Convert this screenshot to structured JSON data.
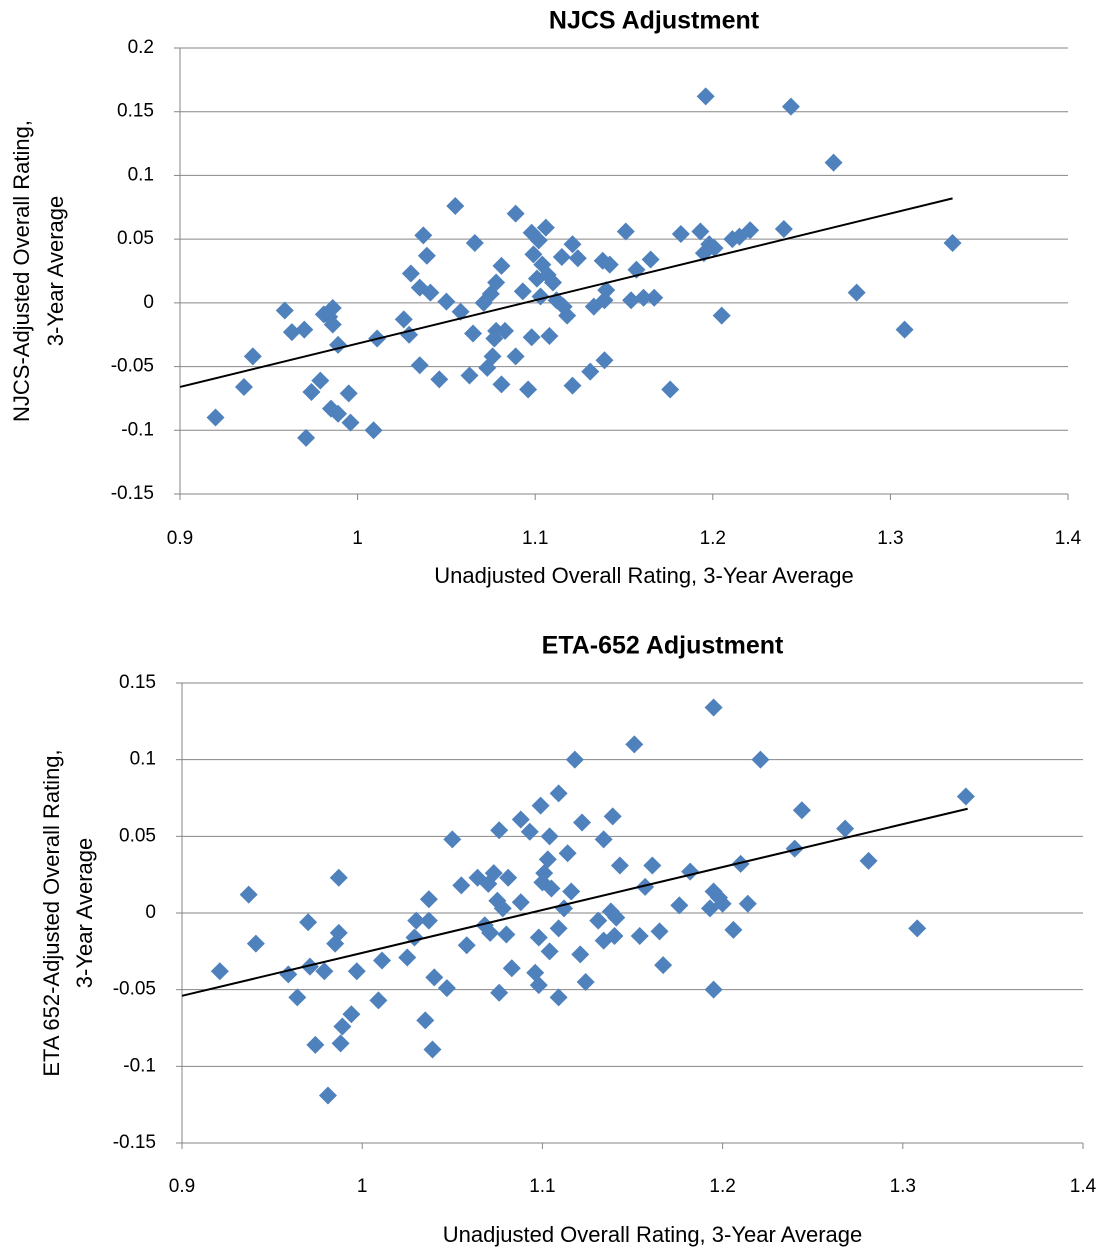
{
  "chart_data": [
    {
      "type": "scatter",
      "title": "NJCS Adjustment",
      "x_label": "Unadjusted Overall Rating, 3-Year Average",
      "y_label": [
        "NJCS-Adjusted Overall Rating,",
        "3-Year Average"
      ],
      "xlim": [
        0.9,
        1.4
      ],
      "xticks": [
        0.9,
        1,
        1.1,
        1.2,
        1.3,
        1.4
      ],
      "ylim": [
        -0.15,
        0.2
      ],
      "yticks": [
        -0.15,
        -0.1,
        -0.05,
        0,
        0.05,
        0.1,
        0.15,
        0.2
      ],
      "grid": true,
      "series": [
        {
          "color": "#4f81bd",
          "x": [
            0.92,
            0.936,
            0.941,
            0.959,
            0.963,
            0.97,
            0.971,
            0.974,
            0.979,
            0.981,
            0.984,
            0.986,
            0.986,
            0.985,
            0.989,
            0.989,
            0.995,
            0.996,
            1.009,
            1.011,
            1.026,
            1.029,
            1.03,
            1.035,
            1.035,
            1.037,
            1.039,
            1.041,
            1.046,
            1.05,
            1.055,
            1.058,
            1.063,
            1.065,
            1.066,
            1.071,
            1.073,
            1.075,
            1.076,
            1.077,
            1.078,
            1.078,
            1.081,
            1.081,
            1.083,
            1.089,
            1.089,
            1.093,
            1.096,
            1.098,
            1.098,
            1.099,
            1.101,
            1.102,
            1.103,
            1.104,
            1.106,
            1.107,
            1.108,
            1.11,
            1.112,
            1.115,
            1.116,
            1.118,
            1.121,
            1.121,
            1.124,
            1.131,
            1.133,
            1.138,
            1.139,
            1.139,
            1.14,
            1.142,
            1.151,
            1.154,
            1.157,
            1.161,
            1.165,
            1.167,
            1.176,
            1.182,
            1.193,
            1.195,
            1.196,
            1.198,
            1.201,
            1.205,
            1.211,
            1.215,
            1.221,
            1.24,
            1.244,
            1.268,
            1.281,
            1.308,
            1.335
          ],
          "y": [
            -0.09,
            -0.066,
            -0.042,
            -0.006,
            -0.023,
            -0.021,
            -0.106,
            -0.07,
            -0.061,
            -0.009,
            -0.011,
            -0.004,
            -0.017,
            -0.083,
            -0.087,
            -0.033,
            -0.071,
            -0.094,
            -0.1,
            -0.028,
            -0.013,
            -0.025,
            0.023,
            -0.049,
            0.012,
            0.053,
            0.037,
            0.008,
            -0.06,
            0.001,
            0.076,
            -0.007,
            -0.057,
            -0.024,
            0.047,
            0.0,
            -0.051,
            0.007,
            -0.042,
            -0.028,
            -0.022,
            0.016,
            -0.064,
            0.029,
            -0.022,
            -0.042,
            0.07,
            0.009,
            -0.068,
            -0.027,
            0.055,
            0.038,
            0.019,
            0.049,
            0.005,
            0.03,
            0.059,
            0.022,
            -0.026,
            0.016,
            0.002,
            0.036,
            -0.003,
            -0.01,
            0.046,
            -0.065,
            0.035,
            -0.054,
            -0.003,
            0.033,
            0.002,
            -0.045,
            0.01,
            0.03,
            0.056,
            0.002,
            0.026,
            0.004,
            0.034,
            0.004,
            -0.068,
            0.054,
            0.056,
            0.039,
            0.162,
            0.046,
            0.043,
            -0.01,
            0.05,
            0.052,
            0.057,
            0.058,
            0.154,
            0.11,
            0.008,
            -0.021,
            0.047
          ]
        }
      ],
      "trendline": {
        "color": "#000000",
        "x": [
          0.9,
          1.335
        ],
        "y": [
          -0.066,
          0.082
        ]
      }
    },
    {
      "type": "scatter",
      "title": "ETA-652 Adjustment",
      "x_label": "Unadjusted Overall Rating, 3-Year Average",
      "y_label": [
        "ETA 652-Adjusted Overall Rating,",
        "3-Year Average"
      ],
      "xlim": [
        0.9,
        1.4
      ],
      "xticks": [
        0.9,
        1,
        1.1,
        1.2,
        1.3,
        1.4
      ],
      "ylim": [
        -0.15,
        0.15
      ],
      "yticks": [
        -0.15,
        -0.1,
        -0.05,
        0,
        0.05,
        0.1,
        0.15
      ],
      "grid": true,
      "series": [
        {
          "color": "#4f81bd",
          "x": [
            0.921,
            0.937,
            0.941,
            0.959,
            0.964,
            0.97,
            0.971,
            0.974,
            0.979,
            0.981,
            0.985,
            0.987,
            0.987,
            0.988,
            0.989,
            0.994,
            0.997,
            1.009,
            1.011,
            1.025,
            1.029,
            1.03,
            1.035,
            1.037,
            1.037,
            1.039,
            1.04,
            1.047,
            1.05,
            1.055,
            1.058,
            1.064,
            1.068,
            1.07,
            1.071,
            1.073,
            1.075,
            1.076,
            1.076,
            1.078,
            1.08,
            1.081,
            1.083,
            1.088,
            1.088,
            1.093,
            1.096,
            1.098,
            1.098,
            1.099,
            1.1,
            1.101,
            1.103,
            1.104,
            1.104,
            1.105,
            1.109,
            1.109,
            1.109,
            1.112,
            1.114,
            1.116,
            1.118,
            1.121,
            1.122,
            1.124,
            1.131,
            1.134,
            1.134,
            1.138,
            1.139,
            1.14,
            1.141,
            1.143,
            1.151,
            1.154,
            1.157,
            1.161,
            1.165,
            1.167,
            1.176,
            1.182,
            1.193,
            1.195,
            1.195,
            1.195,
            1.198,
            1.2,
            1.206,
            1.21,
            1.214,
            1.221,
            1.24,
            1.244,
            1.268,
            1.281,
            1.308,
            1.335
          ],
          "y": [
            -0.038,
            0.012,
            -0.02,
            -0.04,
            -0.055,
            -0.006,
            -0.035,
            -0.086,
            -0.038,
            -0.119,
            -0.02,
            -0.013,
            0.023,
            -0.085,
            -0.074,
            -0.066,
            -0.038,
            -0.057,
            -0.031,
            -0.029,
            -0.016,
            -0.005,
            -0.07,
            0.009,
            -0.005,
            -0.089,
            -0.042,
            -0.049,
            0.048,
            0.018,
            -0.021,
            0.023,
            -0.008,
            0.019,
            -0.013,
            0.026,
            0.008,
            0.054,
            -0.052,
            0.003,
            -0.014,
            0.023,
            -0.036,
            0.007,
            0.061,
            0.053,
            -0.039,
            -0.016,
            -0.047,
            0.07,
            0.02,
            0.026,
            0.035,
            -0.025,
            0.05,
            0.016,
            -0.055,
            0.078,
            -0.01,
            0.003,
            0.039,
            0.014,
            0.1,
            -0.027,
            0.059,
            -0.045,
            -0.005,
            0.048,
            -0.018,
            0.001,
            0.063,
            -0.015,
            -0.003,
            0.031,
            0.11,
            -0.015,
            0.017,
            0.031,
            -0.012,
            -0.034,
            0.005,
            0.027,
            0.003,
            0.014,
            -0.05,
            0.134,
            0.01,
            0.006,
            -0.011,
            0.032,
            0.006,
            0.1,
            0.042,
            0.067,
            0.055,
            0.034,
            -0.01,
            0.076
          ]
        }
      ],
      "trendline": {
        "color": "#000000",
        "x": [
          0.9,
          1.336
        ],
        "y": [
          -0.054,
          0.068
        ]
      }
    }
  ]
}
